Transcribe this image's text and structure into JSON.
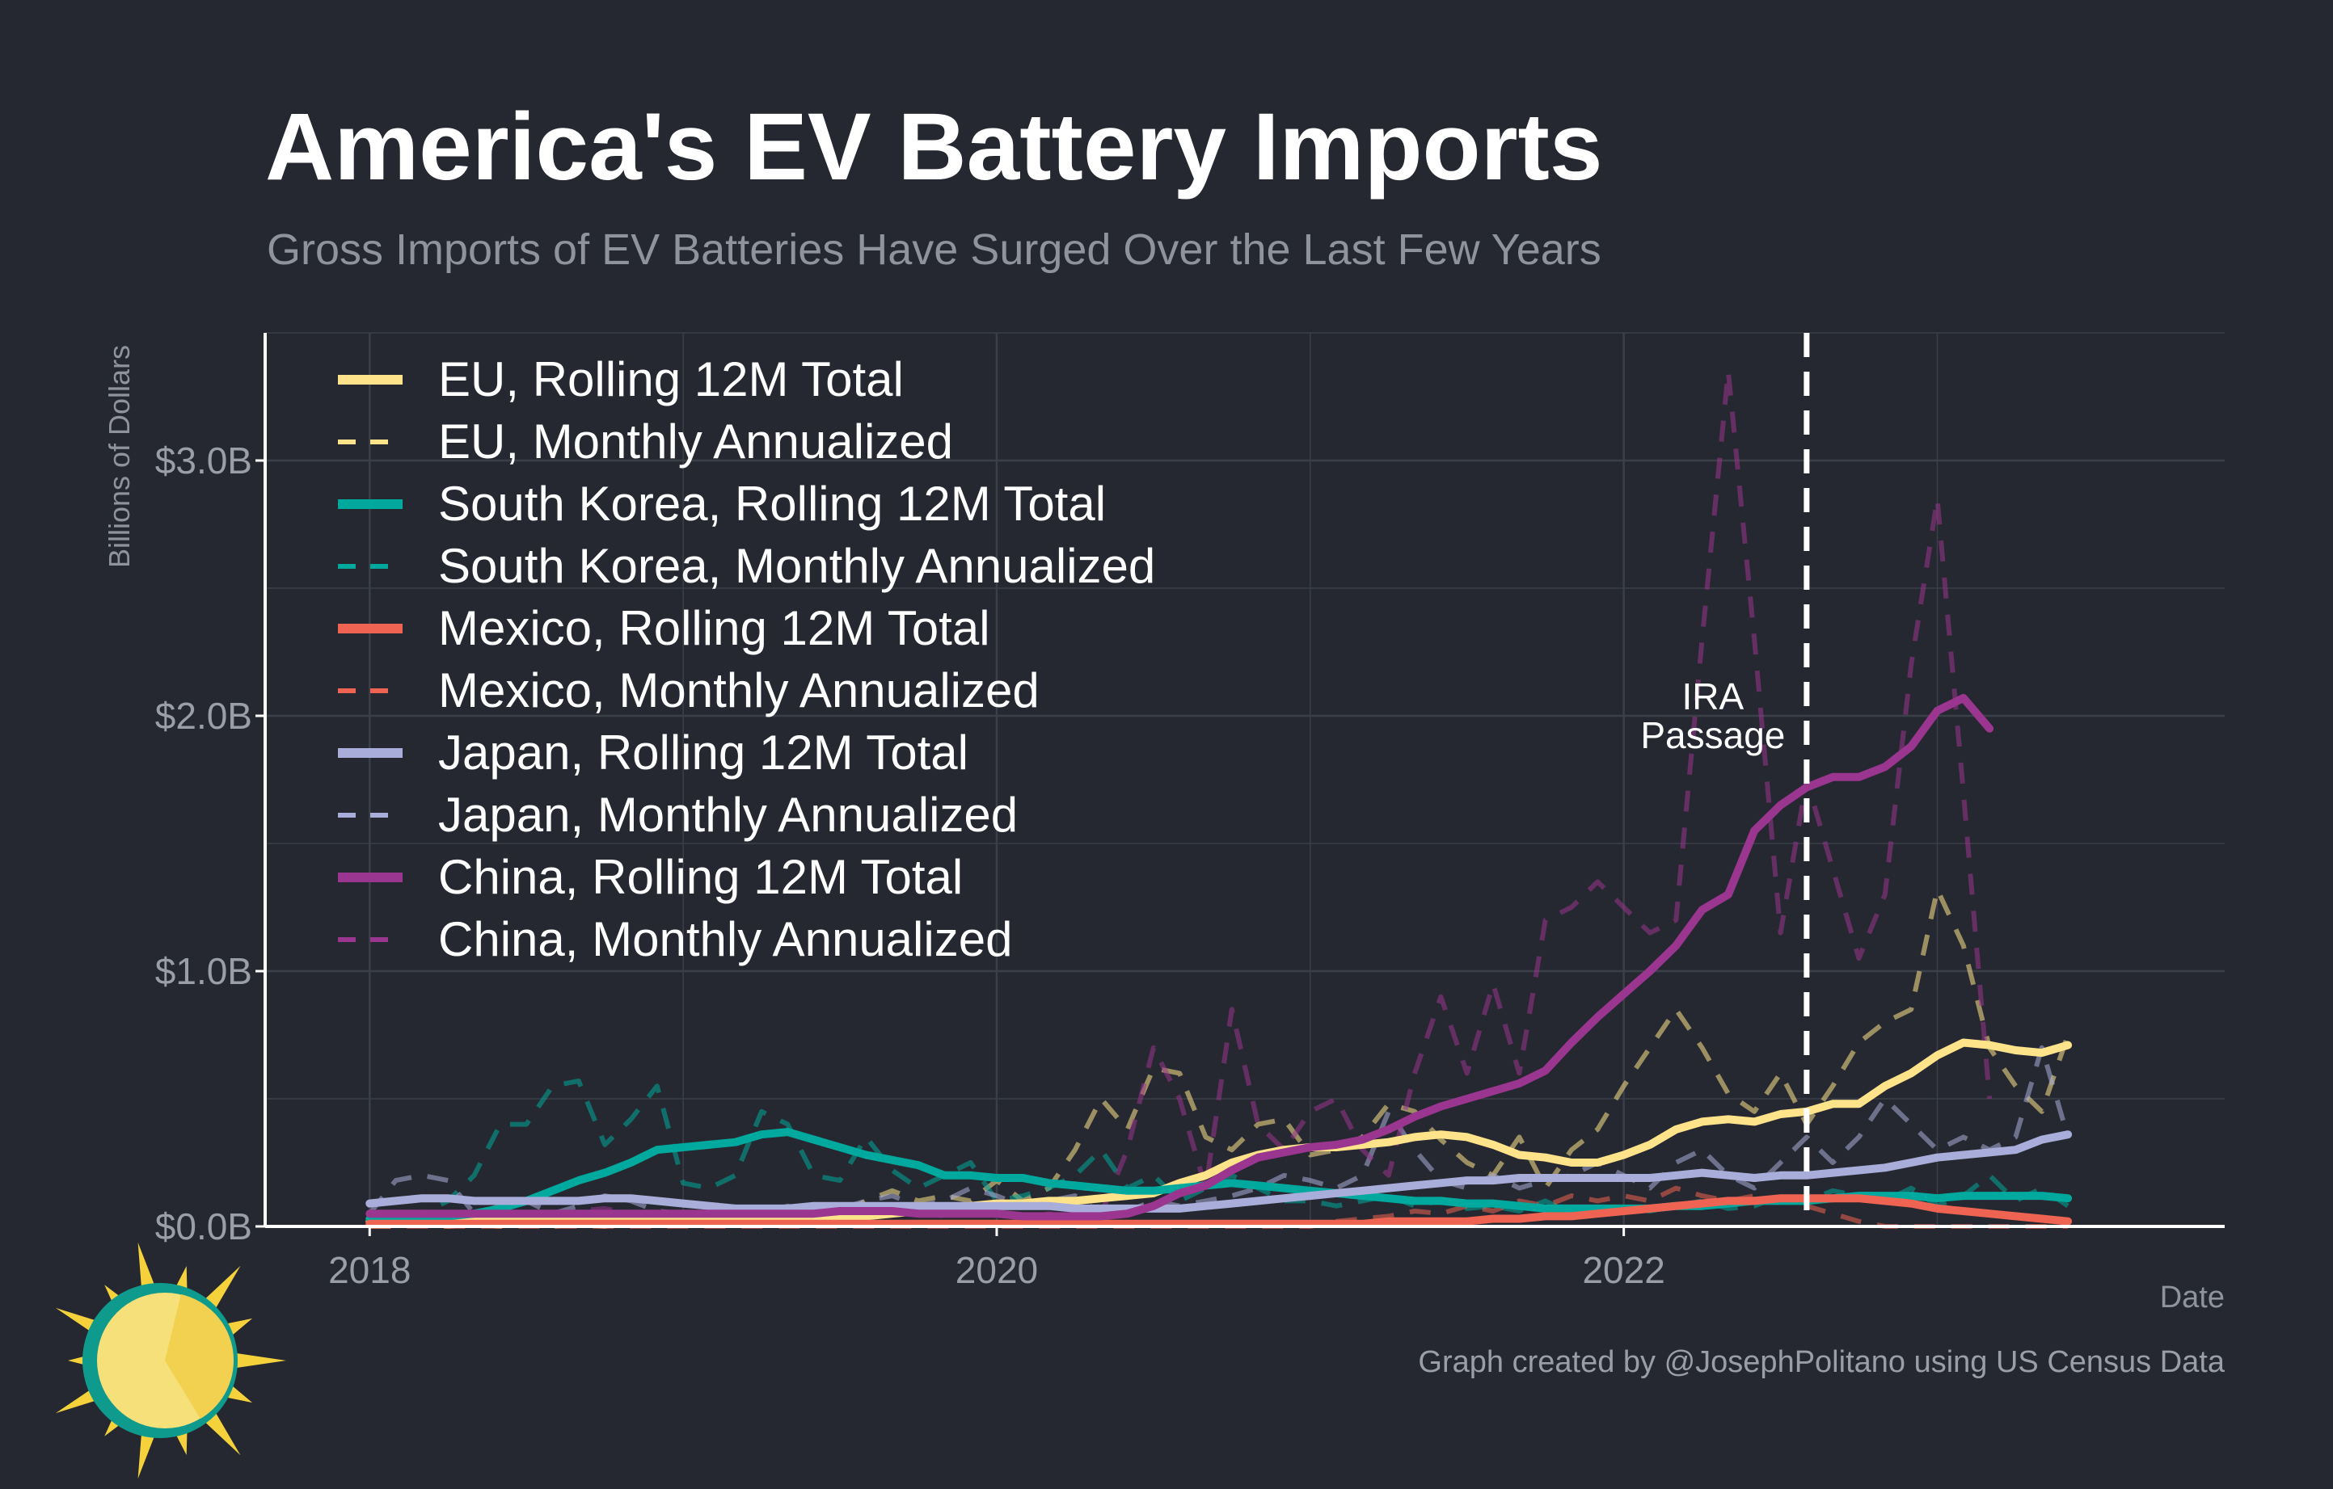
{
  "colors": {
    "background": "#252830",
    "grid": "#3b3f48",
    "axis": "#ffffff",
    "eu": "#ffe38a",
    "south_korea": "#00a99d",
    "mexico": "#ee6352",
    "japan": "#a9add9",
    "china": "#9a3590",
    "ira_line": "#ffffff"
  },
  "icon": "sun-logo-icon",
  "chart_data": {
    "type": "line",
    "title": "America's EV Battery Imports",
    "subtitle": "Gross Imports of EV Batteries Have Surged Over the Last Few Years",
    "xlabel": "Date",
    "ylabel": "Billions of Dollars",
    "xlim": [
      "2017-09",
      "2023-12"
    ],
    "ylim": [
      0,
      3.5
    ],
    "x_ticks": [
      {
        "value": "2018-01",
        "label": "2018"
      },
      {
        "value": "2020-01",
        "label": "2020"
      },
      {
        "value": "2022-01",
        "label": "2022"
      }
    ],
    "y_ticks": [
      {
        "value": 0,
        "label": "$0.0B"
      },
      {
        "value": 1,
        "label": "$1.0B"
      },
      {
        "value": 2,
        "label": "$2.0B"
      },
      {
        "value": 3,
        "label": "$3.0B"
      }
    ],
    "grid": true,
    "legend_position": "top-left",
    "annotation": {
      "x": "2022-08",
      "lines": [
        "IRA",
        "Passage"
      ]
    },
    "caption": "Graph created by @JosephPolitano using US Census Data",
    "x_start": "2018-01",
    "series": [
      {
        "key": "eu_roll",
        "name": "EU, Rolling 12M Total",
        "color_key": "eu",
        "dash": false,
        "values": [
          0.02,
          0.02,
          0.02,
          0.02,
          0.02,
          0.02,
          0.02,
          0.02,
          0.02,
          0.02,
          0.02,
          0.02,
          0.02,
          0.02,
          0.02,
          0.02,
          0.03,
          0.03,
          0.03,
          0.04,
          0.05,
          0.06,
          0.07,
          0.08,
          0.09,
          0.09,
          0.1,
          0.1,
          0.11,
          0.12,
          0.13,
          0.17,
          0.2,
          0.25,
          0.28,
          0.3,
          0.31,
          0.31,
          0.32,
          0.33,
          0.35,
          0.36,
          0.35,
          0.32,
          0.28,
          0.27,
          0.25,
          0.25,
          0.28,
          0.32,
          0.38,
          0.41,
          0.42,
          0.41,
          0.44,
          0.45,
          0.48,
          0.48,
          0.55,
          0.6,
          0.67,
          0.72,
          0.71,
          0.69,
          0.68,
          0.71
        ]
      },
      {
        "key": "eu_mon",
        "name": "EU, Monthly Annualized",
        "color_key": "eu",
        "dash": true,
        "values": [
          0.0,
          0.0,
          0.01,
          0.0,
          0.01,
          0.0,
          0.02,
          0.0,
          0.01,
          0.0,
          0.03,
          0.02,
          0.01,
          0.03,
          0.02,
          0.04,
          0.06,
          0.08,
          0.05,
          0.1,
          0.14,
          0.1,
          0.12,
          0.1,
          0.18,
          0.1,
          0.15,
          0.3,
          0.5,
          0.38,
          0.62,
          0.6,
          0.35,
          0.3,
          0.4,
          0.42,
          0.28,
          0.3,
          0.35,
          0.48,
          0.45,
          0.34,
          0.25,
          0.2,
          0.35,
          0.15,
          0.3,
          0.38,
          0.55,
          0.7,
          0.85,
          0.7,
          0.52,
          0.45,
          0.6,
          0.4,
          0.55,
          0.72,
          0.8,
          0.85,
          1.32,
          1.1,
          0.7,
          0.55,
          0.45,
          0.75
        ]
      },
      {
        "key": "sk_roll",
        "name": "South Korea, Rolling 12M Total",
        "color_key": "south_korea",
        "dash": false,
        "values": [
          0.03,
          0.03,
          0.03,
          0.04,
          0.05,
          0.07,
          0.1,
          0.14,
          0.18,
          0.21,
          0.25,
          0.3,
          0.31,
          0.32,
          0.33,
          0.36,
          0.37,
          0.34,
          0.31,
          0.28,
          0.26,
          0.24,
          0.2,
          0.2,
          0.19,
          0.19,
          0.17,
          0.16,
          0.15,
          0.14,
          0.14,
          0.15,
          0.16,
          0.17,
          0.16,
          0.15,
          0.14,
          0.13,
          0.12,
          0.11,
          0.1,
          0.1,
          0.09,
          0.09,
          0.08,
          0.07,
          0.07,
          0.07,
          0.07,
          0.07,
          0.08,
          0.08,
          0.09,
          0.1,
          0.1,
          0.1,
          0.11,
          0.12,
          0.12,
          0.12,
          0.11,
          0.12,
          0.12,
          0.12,
          0.12,
          0.11
        ]
      },
      {
        "key": "sk_mon",
        "name": "South Korea, Monthly Annualized",
        "color_key": "south_korea",
        "dash": true,
        "values": [
          0.05,
          0.03,
          0.05,
          0.1,
          0.2,
          0.4,
          0.4,
          0.55,
          0.57,
          0.32,
          0.42,
          0.55,
          0.17,
          0.15,
          0.2,
          0.45,
          0.4,
          0.2,
          0.18,
          0.35,
          0.22,
          0.15,
          0.2,
          0.25,
          0.1,
          0.12,
          0.15,
          0.2,
          0.3,
          0.15,
          0.2,
          0.1,
          0.15,
          0.2,
          0.15,
          0.1,
          0.1,
          0.08,
          0.1,
          0.12,
          0.08,
          0.1,
          0.07,
          0.08,
          0.06,
          0.1,
          0.05,
          0.08,
          0.07,
          0.06,
          0.08,
          0.1,
          0.07,
          0.08,
          0.12,
          0.1,
          0.14,
          0.12,
          0.1,
          0.15,
          0.08,
          0.12,
          0.2,
          0.1,
          0.15,
          0.08
        ]
      },
      {
        "key": "mx_roll",
        "name": "Mexico, Rolling 12M Total",
        "color_key": "mexico",
        "dash": false,
        "values": [
          0.01,
          0.01,
          0.01,
          0.01,
          0.01,
          0.01,
          0.01,
          0.01,
          0.01,
          0.01,
          0.01,
          0.01,
          0.01,
          0.01,
          0.01,
          0.01,
          0.01,
          0.01,
          0.01,
          0.01,
          0.01,
          0.01,
          0.01,
          0.01,
          0.01,
          0.01,
          0.01,
          0.01,
          0.01,
          0.01,
          0.01,
          0.01,
          0.01,
          0.01,
          0.01,
          0.01,
          0.01,
          0.01,
          0.01,
          0.02,
          0.02,
          0.02,
          0.02,
          0.03,
          0.03,
          0.04,
          0.04,
          0.05,
          0.06,
          0.07,
          0.08,
          0.09,
          0.1,
          0.1,
          0.11,
          0.11,
          0.11,
          0.11,
          0.1,
          0.09,
          0.07,
          0.06,
          0.05,
          0.04,
          0.03,
          0.02
        ]
      },
      {
        "key": "mx_mon",
        "name": "Mexico, Monthly Annualized",
        "color_key": "mexico",
        "dash": true,
        "values": [
          0.0,
          0.0,
          0.0,
          0.0,
          0.0,
          0.0,
          0.0,
          0.0,
          0.0,
          0.0,
          0.0,
          0.0,
          0.0,
          0.0,
          0.0,
          0.0,
          0.0,
          0.0,
          0.0,
          0.0,
          0.0,
          0.0,
          0.0,
          0.0,
          0.0,
          0.0,
          0.0,
          0.0,
          0.0,
          0.0,
          0.0,
          0.0,
          0.0,
          0.0,
          0.0,
          0.0,
          0.0,
          0.02,
          0.03,
          0.04,
          0.06,
          0.05,
          0.08,
          0.06,
          0.1,
          0.08,
          0.12,
          0.1,
          0.12,
          0.1,
          0.15,
          0.12,
          0.1,
          0.12,
          0.1,
          0.08,
          0.05,
          0.02,
          0.0,
          0.0,
          0.0,
          0.0,
          0.0,
          0.0,
          0.0,
          0.0
        ]
      },
      {
        "key": "jp_roll",
        "name": "Japan, Rolling 12M Total",
        "color_key": "japan",
        "dash": false,
        "values": [
          0.09,
          0.1,
          0.11,
          0.11,
          0.1,
          0.1,
          0.1,
          0.1,
          0.1,
          0.11,
          0.11,
          0.1,
          0.09,
          0.08,
          0.07,
          0.07,
          0.07,
          0.08,
          0.08,
          0.08,
          0.08,
          0.08,
          0.08,
          0.08,
          0.08,
          0.08,
          0.08,
          0.07,
          0.07,
          0.07,
          0.07,
          0.07,
          0.08,
          0.09,
          0.1,
          0.11,
          0.12,
          0.13,
          0.14,
          0.15,
          0.16,
          0.17,
          0.18,
          0.18,
          0.19,
          0.19,
          0.19,
          0.19,
          0.19,
          0.19,
          0.2,
          0.21,
          0.2,
          0.19,
          0.2,
          0.2,
          0.21,
          0.22,
          0.23,
          0.25,
          0.27,
          0.28,
          0.29,
          0.3,
          0.34,
          0.36
        ]
      },
      {
        "key": "jp_mon",
        "name": "Japan, Monthly Annualized",
        "color_key": "japan",
        "dash": true,
        "values": [
          0.05,
          0.18,
          0.2,
          0.18,
          0.05,
          0.08,
          0.1,
          0.05,
          0.08,
          0.12,
          0.1,
          0.06,
          0.05,
          0.04,
          0.06,
          0.05,
          0.08,
          0.05,
          0.07,
          0.1,
          0.12,
          0.08,
          0.1,
          0.15,
          0.12,
          0.08,
          0.1,
          0.12,
          0.05,
          0.06,
          0.1,
          0.08,
          0.1,
          0.12,
          0.15,
          0.2,
          0.18,
          0.15,
          0.2,
          0.45,
          0.3,
          0.18,
          0.15,
          0.2,
          0.15,
          0.18,
          0.2,
          0.25,
          0.2,
          0.15,
          0.25,
          0.3,
          0.2,
          0.15,
          0.25,
          0.35,
          0.25,
          0.35,
          0.5,
          0.4,
          0.3,
          0.35,
          0.3,
          0.35,
          0.7,
          0.35
        ]
      },
      {
        "key": "cn_roll",
        "name": "China, Rolling 12M Total",
        "color_key": "china",
        "dash": false,
        "values": [
          0.05,
          0.05,
          0.05,
          0.05,
          0.05,
          0.05,
          0.05,
          0.05,
          0.05,
          0.05,
          0.05,
          0.05,
          0.05,
          0.05,
          0.05,
          0.05,
          0.05,
          0.05,
          0.06,
          0.06,
          0.06,
          0.05,
          0.05,
          0.05,
          0.05,
          0.04,
          0.04,
          0.04,
          0.04,
          0.05,
          0.08,
          0.13,
          0.16,
          0.22,
          0.27,
          0.29,
          0.31,
          0.32,
          0.34,
          0.38,
          0.43,
          0.47,
          0.5,
          0.53,
          0.56,
          0.61,
          0.72,
          0.82,
          0.91,
          1.0,
          1.1,
          1.24,
          1.3,
          1.55,
          1.65,
          1.72,
          1.76,
          1.76,
          1.8,
          1.88,
          2.02,
          2.07,
          1.95
        ]
      },
      {
        "key": "cn_mon",
        "name": "China, Monthly Annualized",
        "color_key": "china",
        "dash": true,
        "values": [
          0.03,
          0.04,
          0.05,
          0.04,
          0.06,
          0.05,
          0.05,
          0.04,
          0.06,
          0.07,
          0.05,
          0.06,
          0.05,
          0.04,
          0.05,
          0.06,
          0.05,
          0.07,
          0.06,
          0.08,
          0.05,
          0.06,
          0.04,
          0.05,
          0.05,
          0.03,
          0.05,
          0.04,
          0.05,
          0.3,
          0.7,
          0.5,
          0.15,
          0.85,
          0.4,
          0.3,
          0.45,
          0.5,
          0.3,
          0.2,
          0.6,
          0.9,
          0.6,
          0.95,
          0.6,
          1.2,
          1.25,
          1.35,
          1.25,
          1.15,
          1.2,
          2.3,
          3.35,
          2.3,
          1.15,
          1.75,
          1.4,
          1.05,
          1.3,
          2.2,
          2.85,
          1.7,
          0.5
        ]
      }
    ]
  }
}
